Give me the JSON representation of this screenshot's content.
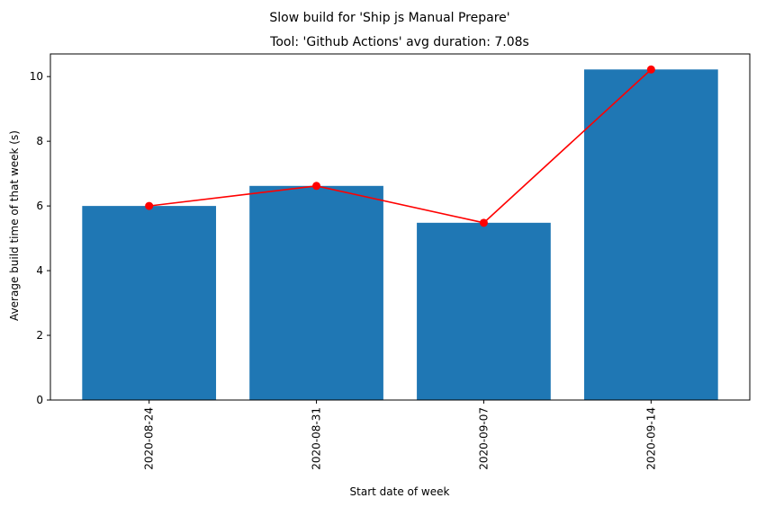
{
  "chart_data": {
    "type": "bar",
    "suptitle": "Slow build for 'Ship js Manual Prepare'",
    "title": "Tool: 'Github Actions' avg duration: 7.08s",
    "xlabel": "Start date of week",
    "ylabel": "Average build time of that week (s)",
    "categories": [
      "2020-08-24",
      "2020-08-31",
      "2020-09-07",
      "2020-09-14"
    ],
    "values": [
      6.0,
      6.62,
      5.48,
      10.22
    ],
    "line_values": [
      6.0,
      6.62,
      5.48,
      10.22
    ],
    "ylim": [
      0,
      10.7
    ],
    "yticks": [
      0,
      2,
      4,
      6,
      8,
      10
    ],
    "grid": false,
    "legend": "none",
    "bar_color": "#1f77b4",
    "line_color": "#ff0000"
  }
}
